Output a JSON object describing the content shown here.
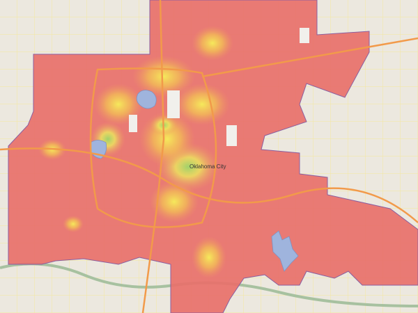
{
  "map": {
    "labels": [
      {
        "text": "Oklahoma City"
      }
    ]
  }
}
